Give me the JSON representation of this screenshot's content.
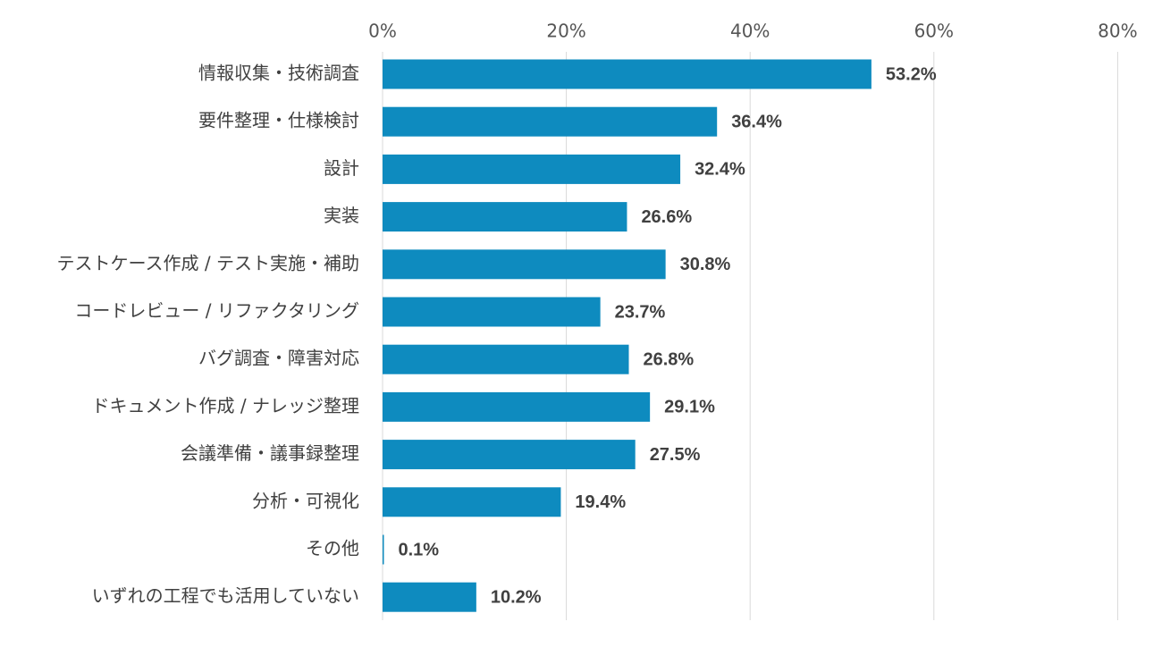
{
  "colors": {
    "bar": "#0e8bbf",
    "text": "#404040",
    "grid": "#d9d9d9"
  },
  "chart_data": {
    "type": "bar",
    "orientation": "horizontal",
    "title": "",
    "xlabel": "",
    "ylabel": "",
    "x_ticks": [
      "0%",
      "20%",
      "40%",
      "60%",
      "80%"
    ],
    "xlim": [
      0,
      80
    ],
    "grid": true,
    "legend": "none",
    "categories": [
      "情報収集・技術調査",
      "要件整理・仕様検討",
      "設計",
      "実装",
      "テストケース作成 / テスト実施・補助",
      "コードレビュー / リファクタリング",
      "バグ調査・障害対応",
      "ドキュメント作成 / ナレッジ整理",
      "会議準備・議事録整理",
      "分析・可視化",
      "その他",
      "いずれの工程でも活用していない"
    ],
    "values": [
      53.2,
      36.4,
      32.4,
      26.6,
      30.8,
      23.7,
      26.8,
      29.1,
      27.5,
      19.4,
      0.1,
      10.2
    ],
    "value_labels": [
      "53.2%",
      "36.4%",
      "32.4%",
      "26.6%",
      "30.8%",
      "23.7%",
      "26.8%",
      "29.1%",
      "27.5%",
      "19.4%",
      "0.1%",
      "10.2%"
    ]
  }
}
